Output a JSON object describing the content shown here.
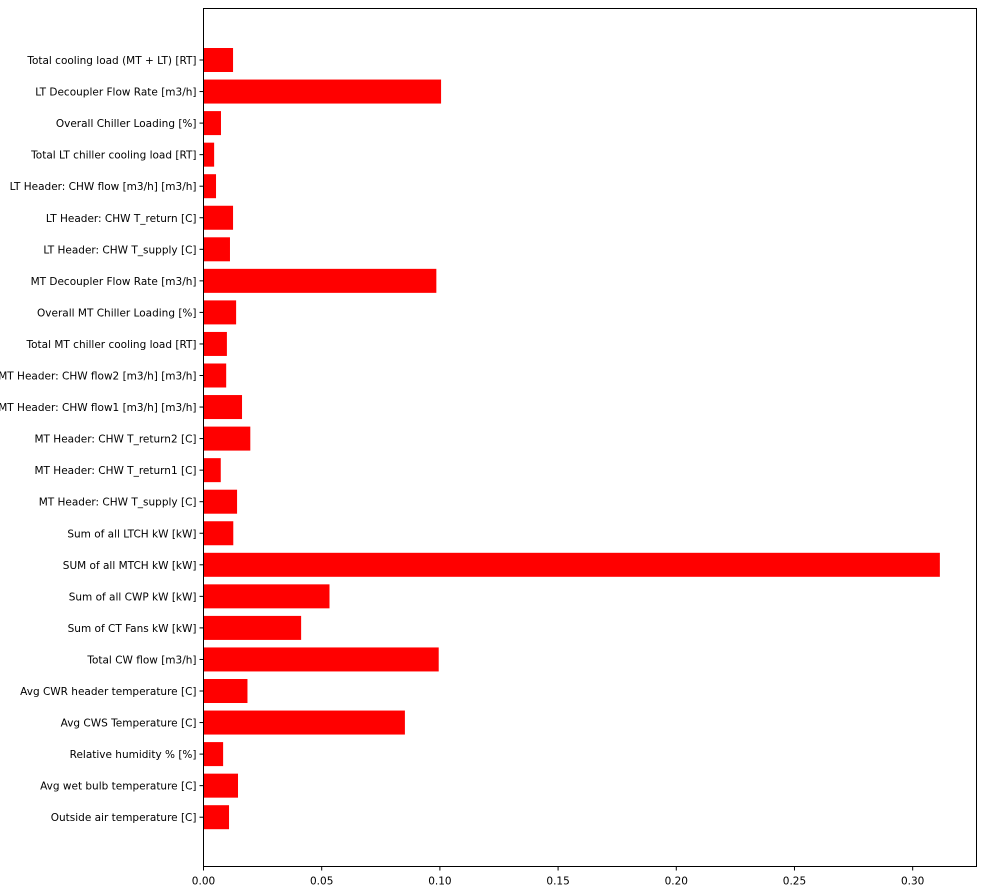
{
  "chart_data": {
    "type": "bar",
    "orientation": "horizontal",
    "color": "#ff0000",
    "categories": [
      "Total cooling load (MT + LT) [RT]",
      "LT Decoupler Flow Rate [m3/h]",
      "Overall Chiller Loading [%]",
      "Total LT chiller cooling load [RT]",
      "LT Header: CHW flow [m3/h] [m3/h]",
      "LT Header: CHW T_return [C]",
      "LT Header: CHW T_supply [C]",
      "MT Decoupler Flow Rate [m3/h]",
      "Overall MT Chiller Loading [%]",
      "Total MT chiller cooling load [RT]",
      "MT Header: CHW flow2 [m3/h] [m3/h]",
      "MT Header: CHW flow1 [m3/h] [m3/h]",
      "MT Header: CHW T_return2 [C]",
      "MT Header: CHW T_return1 [C]",
      "MT Header: CHW T_supply [C]",
      "Sum of all LTCH kW [kW]",
      "SUM of all MTCH kW [kW]",
      "Sum of all CWP kW [kW]",
      "Sum of CT Fans kW [kW]",
      "Total CW flow [m3/h]",
      "Avg CWR header temperature [C]",
      "Avg CWS Temperature [C]",
      "Relative humidity % [%]",
      "Avg wet bulb temperature [C]",
      "Outside air temperature [C]"
    ],
    "values": [
      0.0125,
      0.1005,
      0.0074,
      0.0045,
      0.0053,
      0.0125,
      0.0112,
      0.0985,
      0.0138,
      0.0099,
      0.0096,
      0.0163,
      0.0198,
      0.0073,
      0.0142,
      0.0126,
      0.3115,
      0.0533,
      0.0413,
      0.0995,
      0.0186,
      0.0852,
      0.0083,
      0.0146,
      0.0108
    ],
    "xticks": [
      "0.00",
      "0.05",
      "0.10",
      "0.15",
      "0.20",
      "0.25",
      "0.30"
    ],
    "xlim": [
      0,
      0.327
    ],
    "title": "",
    "xlabel": "",
    "ylabel": "",
    "grid": false
  }
}
